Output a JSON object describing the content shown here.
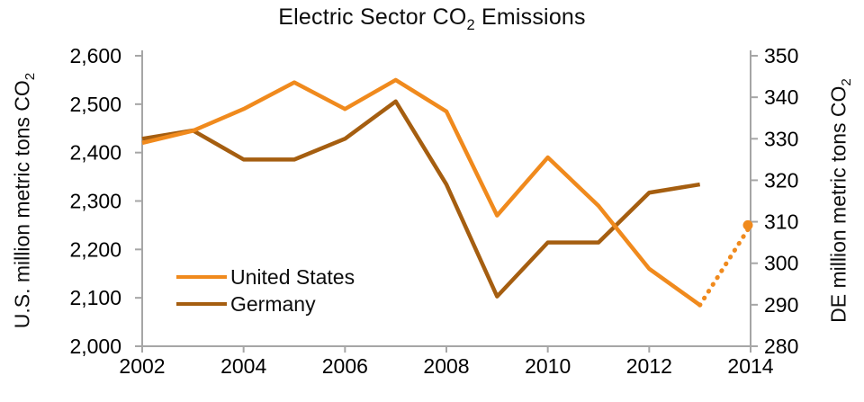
{
  "colors": {
    "united_states": "#F08A1D",
    "germany": "#A55E10",
    "axis_line": "#A6A6A6",
    "text": "#0d0d0d",
    "background": "#ffffff"
  },
  "chart_data": {
    "type": "line",
    "title": "Electric Sector CO2 Emissions",
    "title_parts": {
      "before_sub": "Electric Sector CO",
      "sub": "2",
      "after_sub": " Emissions"
    },
    "grid": false,
    "legend_position": "inside-lower-left",
    "x_axis": {
      "min": 2002,
      "max": 2014,
      "ticks": [
        {
          "value": 2002,
          "label": "2002"
        },
        {
          "value": 2004,
          "label": "2004"
        },
        {
          "value": 2006,
          "label": "2006"
        },
        {
          "value": 2008,
          "label": "2008"
        },
        {
          "value": 2010,
          "label": "2010"
        },
        {
          "value": 2012,
          "label": "2012"
        },
        {
          "value": 2014,
          "label": "2014"
        }
      ]
    },
    "y_left": {
      "title": "U.S. million metric tons CO2",
      "title_parts": {
        "before_sub": "U.S. million metric tons CO",
        "sub": "2"
      },
      "min": 2000,
      "max": 2600,
      "ticks": [
        {
          "value": 2000,
          "label": "2,000"
        },
        {
          "value": 2100,
          "label": "2,100"
        },
        {
          "value": 2200,
          "label": "2,200"
        },
        {
          "value": 2300,
          "label": "2,300"
        },
        {
          "value": 2400,
          "label": "2,400"
        },
        {
          "value": 2500,
          "label": "2,500"
        },
        {
          "value": 2600,
          "label": "2,600"
        }
      ]
    },
    "y_right": {
      "title": "DE million metric tons CO2",
      "title_parts": {
        "before_sub": "DE million metric tons CO",
        "sub": "2"
      },
      "min": 280,
      "max": 350,
      "ticks": [
        {
          "value": 280,
          "label": "280"
        },
        {
          "value": 290,
          "label": "290"
        },
        {
          "value": 300,
          "label": "300"
        },
        {
          "value": 310,
          "label": "310"
        },
        {
          "value": 320,
          "label": "320"
        },
        {
          "value": 330,
          "label": "330"
        },
        {
          "value": 340,
          "label": "340"
        },
        {
          "value": 350,
          "label": "350"
        }
      ]
    },
    "x_years": [
      2002,
      2003,
      2004,
      2005,
      2006,
      2007,
      2008,
      2009,
      2010,
      2011,
      2012,
      2013
    ],
    "series": [
      {
        "name": "United States",
        "axis": "left",
        "color": "#F08A1D",
        "style": "solid",
        "values": [
          2420,
          2445,
          2490,
          2545,
          2490,
          2550,
          2485,
          2270,
          2390,
          2290,
          2160,
          2085
        ]
      },
      {
        "name": "Germany",
        "axis": "right",
        "color": "#A55E10",
        "style": "solid",
        "values": [
          330,
          332,
          325,
          325,
          330,
          339,
          319,
          292,
          305,
          305,
          317,
          319
        ]
      }
    ],
    "projection": {
      "series_name": "United States",
      "axis": "left",
      "color": "#F08A1D",
      "style": "dotted",
      "x_years": [
        2013,
        2014
      ],
      "values": [
        2085,
        2250
      ],
      "end_marker": true
    }
  }
}
